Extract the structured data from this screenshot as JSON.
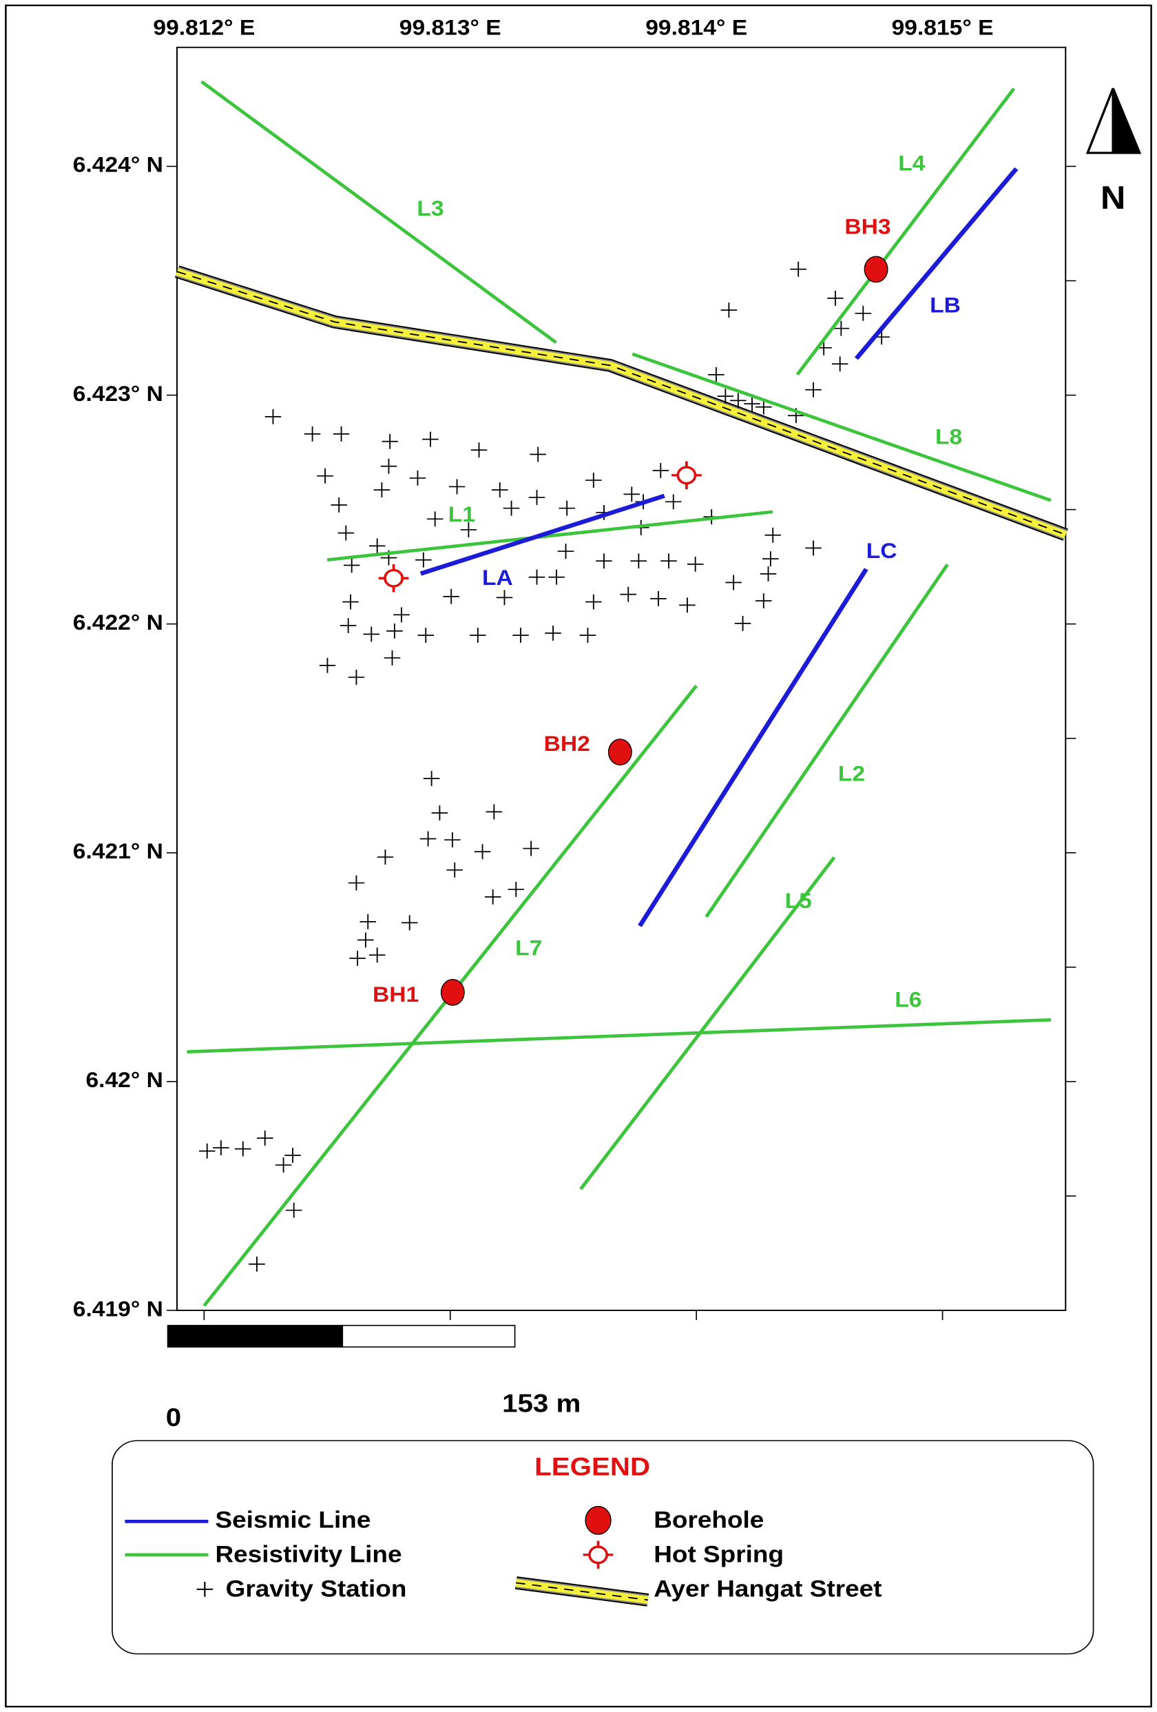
{
  "map": {
    "lon_ticks": [
      {
        "value": 99.812,
        "label": "99.812° E"
      },
      {
        "value": 99.813,
        "label": "99.813° E"
      },
      {
        "value": 99.814,
        "label": "99.814° E"
      },
      {
        "value": 99.815,
        "label": "99.815° E"
      }
    ],
    "lat_ticks": [
      {
        "value": 6.424,
        "label": "6.424° N"
      },
      {
        "value": 6.423,
        "label": "6.423° N"
      },
      {
        "value": 6.422,
        "label": "6.422° N"
      },
      {
        "value": 6.421,
        "label": "6.421° N"
      },
      {
        "value": 6.42,
        "label": "6.42° N"
      },
      {
        "value": 6.419,
        "label": "6.419° N"
      }
    ],
    "right_ticks": [
      6.424,
      6.4235,
      6.423,
      6.4225,
      6.422,
      6.4215,
      6.421,
      6.4205,
      6.42,
      6.4195
    ],
    "lon_range": [
      99.81189,
      99.8155
    ],
    "lat_range": [
      6.419,
      6.42452
    ],
    "north_label": "N",
    "colors": {
      "seismic": "#1b1bd8",
      "resistivity": "#3cc43c",
      "borehole": "#e01010",
      "hot_spring": "#e01010",
      "street": "#f5f03a"
    },
    "lines": [
      {
        "name": "L3",
        "kind": "resistivity",
        "lon": [
          99.81199,
          99.81343
        ],
        "lat": [
          6.42437,
          6.42323
        ]
      },
      {
        "name": "L4",
        "kind": "resistivity",
        "lon": [
          99.81529,
          99.81441
        ],
        "lat": [
          6.42434,
          6.42309
        ]
      },
      {
        "name": "LB",
        "kind": "seismic",
        "lon": [
          99.8153,
          99.81465
        ],
        "lat": [
          6.42399,
          6.42316
        ]
      },
      {
        "name": "L8",
        "kind": "resistivity",
        "lon": [
          99.81374,
          99.81544
        ],
        "lat": [
          6.42318,
          6.42254
        ]
      },
      {
        "name": "L1",
        "kind": "resistivity",
        "lon": [
          99.8125,
          99.81431
        ],
        "lat": [
          6.42228,
          6.42249
        ]
      },
      {
        "name": "LA",
        "kind": "seismic",
        "lon": [
          99.81288,
          99.81387
        ],
        "lat": [
          6.42222,
          6.42256
        ]
      },
      {
        "name": "LC",
        "kind": "seismic",
        "lon": [
          99.81469,
          99.81377
        ],
        "lat": [
          6.42224,
          6.42068
        ]
      },
      {
        "name": "L2",
        "kind": "resistivity",
        "lon": [
          99.81502,
          99.81404
        ],
        "lat": [
          6.42226,
          6.42072
        ]
      },
      {
        "name": "L5",
        "kind": "resistivity",
        "lon": [
          99.81456,
          99.81353
        ],
        "lat": [
          6.42098,
          6.41953
        ]
      },
      {
        "name": "L7",
        "kind": "resistivity",
        "lon": [
          99.814,
          99.812
        ],
        "lat": [
          6.42173,
          6.41902
        ]
      },
      {
        "name": "L6",
        "kind": "resistivity",
        "lon": [
          99.81193,
          99.81544
        ],
        "lat": [
          6.42013,
          6.42027
        ]
      }
    ],
    "road": {
      "lon": [
        99.81189,
        99.81253,
        99.81365,
        99.8155
      ],
      "lat": [
        6.42354,
        6.42332,
        6.42313,
        6.42239
      ]
    },
    "boreholes": [
      {
        "name": "BH3",
        "lon": 99.81473,
        "lat": 6.42355
      },
      {
        "name": "BH2",
        "lon": 99.81369,
        "lat": 6.42144
      },
      {
        "name": "BH1",
        "lon": 99.81301,
        "lat": 6.42039
      }
    ],
    "hot_springs": [
      {
        "lon": 99.81396,
        "lat": 6.42265
      },
      {
        "lon": 99.81277,
        "lat": 6.4222
      }
    ],
    "scale_bar": {
      "start": "0",
      "end": "153 m"
    },
    "legend": {
      "title": "LEGEND",
      "seismic": "Seismic Line",
      "resistivity": "Resistivity Line",
      "gravity": "Gravity Station",
      "borehole": "Borehole",
      "hot_spring": "Hot Spring",
      "street": "Ayer Hangat Street"
    }
  }
}
